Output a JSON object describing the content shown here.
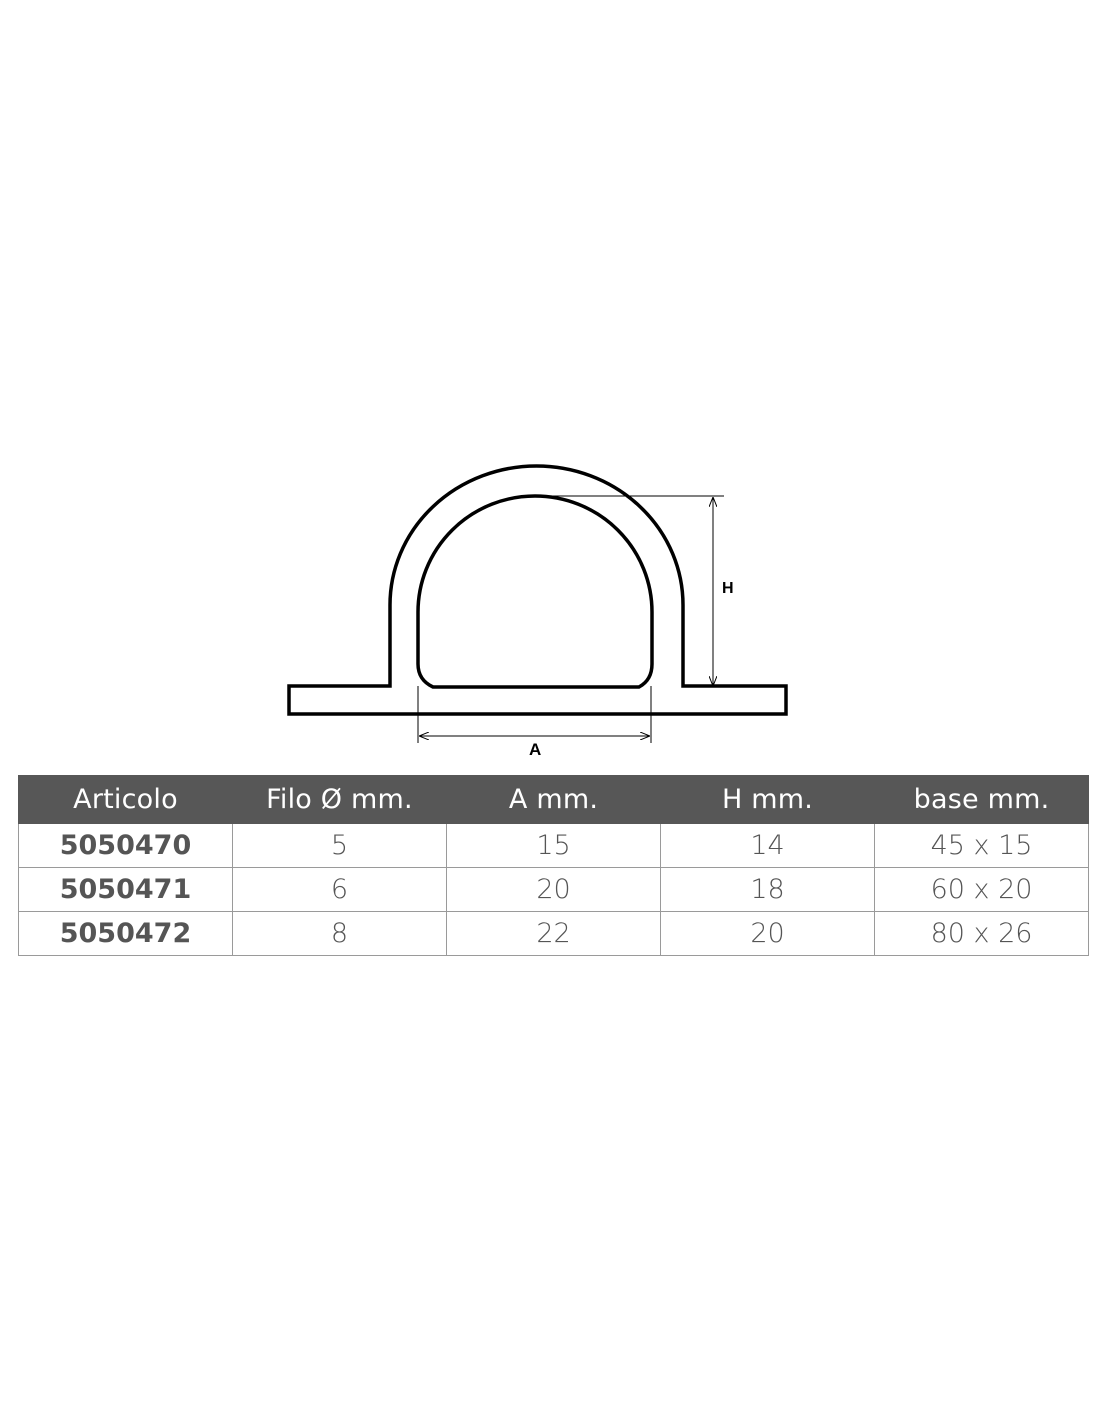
{
  "drawing": {
    "labels": {
      "height": "H",
      "width": "A"
    },
    "stroke_color": "#000000"
  },
  "table": {
    "header_color": "#575757",
    "headers": [
      "Articolo",
      "Filo Ø mm.",
      "A mm.",
      "H mm.",
      "base mm."
    ],
    "rows": [
      [
        "5050470",
        "5",
        "15",
        "14",
        "45 x 15"
      ],
      [
        "5050471",
        "6",
        "20",
        "18",
        "60 x 20"
      ],
      [
        "5050472",
        "8",
        "22",
        "20",
        "80 x 26"
      ]
    ]
  }
}
